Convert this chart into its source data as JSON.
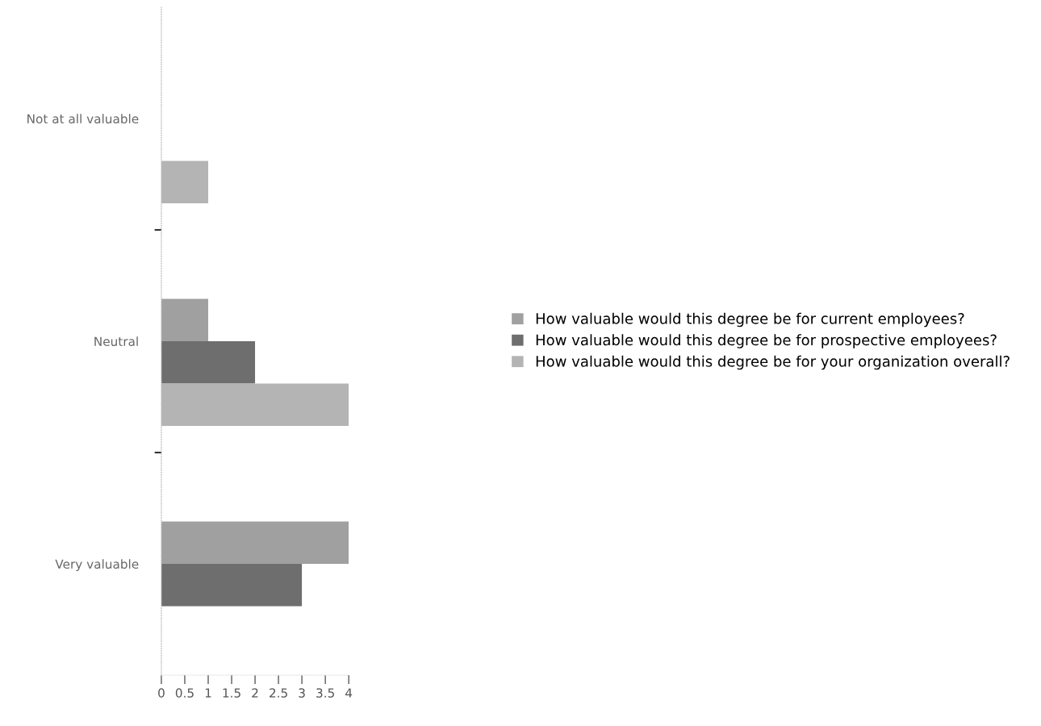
{
  "chart_data": {
    "type": "bar",
    "orientation": "horizontal",
    "categories": [
      "Not at all valuable",
      "Neutral",
      "Very valuable"
    ],
    "series": [
      {
        "name": "How valuable would this degree be for current employees?",
        "color": "#a0a0a0",
        "values": [
          0,
          1,
          4
        ]
      },
      {
        "name": "How valuable would this degree be for prospective employees?",
        "color": "#6e6e6e",
        "values": [
          0,
          2,
          3
        ]
      },
      {
        "name": "How valuable would this degree be for your organization overall?",
        "color": "#b4b4b4",
        "values": [
          1,
          4,
          0
        ]
      }
    ],
    "xlim": [
      0,
      4
    ],
    "xticks": [
      0,
      0.5,
      1,
      1.5,
      2,
      2.5,
      3,
      3.5,
      4
    ],
    "grid": false,
    "legend": "right"
  }
}
